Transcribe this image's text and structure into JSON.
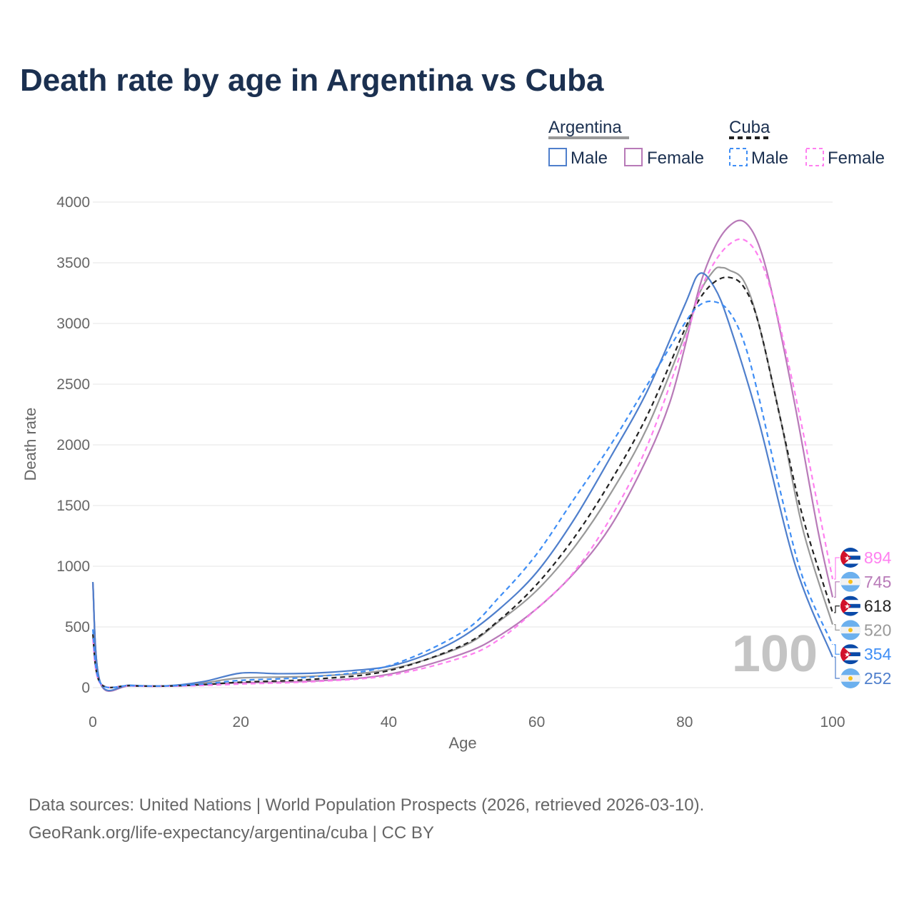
{
  "title": "Death rate by age in Argentina vs Cuba",
  "footer": {
    "line1": "Data sources: United Nations | World Population Prospects (2026, retrieved 2026-03-10).",
    "line2": "GeoRank.org/life-expectancy/argentina/cuba | CC BY"
  },
  "legend": {
    "groups": [
      {
        "label": "Argentina",
        "items": [
          "Male",
          "Female"
        ]
      },
      {
        "label": "Cuba",
        "items": [
          "Male",
          "Female"
        ]
      }
    ]
  },
  "chart_data": {
    "type": "line",
    "title": "Death rate by age in Argentina vs Cuba",
    "xlabel": "Age",
    "ylabel": "Death rate",
    "xlim": [
      0,
      100
    ],
    "ylim": [
      0,
      4000
    ],
    "xticks": [
      "0",
      "20",
      "40",
      "60",
      "80",
      "100"
    ],
    "yticks": [
      "0",
      "500",
      "1000",
      "1500",
      "2000",
      "2500",
      "3000",
      "3500",
      "4000"
    ],
    "age_marker": "100",
    "grid": true,
    "legend_position": "top-right",
    "series": [
      {
        "name": "Cuba Female",
        "country": "Cuba",
        "color": "#ff80f0",
        "dashed": true,
        "end_label": "894",
        "x": [
          0,
          1,
          5,
          10,
          15,
          20,
          30,
          40,
          50,
          55,
          60,
          65,
          70,
          75,
          80,
          82,
          84,
          86,
          88,
          90,
          92,
          95,
          98,
          100
        ],
        "y": [
          400,
          35,
          15,
          12,
          18,
          30,
          50,
          100,
          250,
          400,
          650,
          950,
          1400,
          2000,
          2850,
          3250,
          3500,
          3650,
          3690,
          3550,
          3200,
          2400,
          1500,
          894
        ]
      },
      {
        "name": "Argentina Female",
        "country": "Argentina",
        "color": "#b87ab8",
        "dashed": false,
        "end_label": "745",
        "x": [
          0,
          1,
          5,
          10,
          15,
          20,
          30,
          40,
          50,
          55,
          60,
          65,
          70,
          75,
          78,
          80,
          82,
          84,
          86,
          88,
          90,
          92,
          95,
          98,
          100
        ],
        "y": [
          860,
          40,
          15,
          12,
          25,
          40,
          55,
          110,
          280,
          430,
          650,
          940,
          1330,
          1900,
          2350,
          2800,
          3300,
          3620,
          3800,
          3840,
          3650,
          3200,
          2300,
          1300,
          745
        ]
      },
      {
        "name": "Cuba",
        "country": "Cuba",
        "color": "#222222",
        "dashed": true,
        "end_label": "618",
        "x": [
          0,
          1,
          5,
          10,
          15,
          20,
          30,
          40,
          50,
          55,
          60,
          65,
          70,
          75,
          80,
          82,
          84,
          86,
          88,
          90,
          93,
          96,
          100
        ],
        "y": [
          440,
          38,
          16,
          13,
          25,
          45,
          70,
          140,
          350,
          560,
          850,
          1230,
          1700,
          2250,
          2950,
          3200,
          3340,
          3380,
          3300,
          3000,
          2200,
          1400,
          618
        ]
      },
      {
        "name": "Argentina",
        "country": "Argentina",
        "color": "#999999",
        "dashed": false,
        "end_label": "520",
        "x": [
          0,
          1,
          5,
          10,
          15,
          20,
          30,
          40,
          50,
          55,
          60,
          65,
          70,
          75,
          80,
          82,
          84,
          85,
          86,
          88,
          90,
          93,
          96,
          100
        ],
        "y": [
          870,
          42,
          17,
          14,
          38,
          80,
          95,
          150,
          340,
          550,
          800,
          1150,
          1600,
          2150,
          2900,
          3250,
          3440,
          3460,
          3440,
          3350,
          3000,
          2200,
          1300,
          520
        ]
      },
      {
        "name": "Cuba Male",
        "country": "Cuba",
        "color": "#3f8ef5",
        "dashed": true,
        "end_label": "354",
        "x": [
          0,
          1,
          5,
          10,
          15,
          20,
          30,
          40,
          50,
          55,
          60,
          65,
          70,
          75,
          80,
          82,
          84,
          86,
          88,
          90,
          93,
          96,
          100
        ],
        "y": [
          480,
          40,
          17,
          14,
          30,
          60,
          90,
          180,
          460,
          750,
          1100,
          1550,
          2000,
          2500,
          3000,
          3150,
          3180,
          3100,
          2850,
          2400,
          1600,
          900,
          354
        ]
      },
      {
        "name": "Argentina Male",
        "country": "Argentina",
        "color": "#4f7fcc",
        "dashed": false,
        "end_label": "252",
        "x": [
          0,
          1,
          5,
          10,
          15,
          20,
          25,
          30,
          35,
          40,
          45,
          50,
          55,
          60,
          65,
          70,
          75,
          80,
          82,
          84,
          86,
          90,
          95,
          100
        ],
        "y": [
          870,
          45,
          20,
          15,
          50,
          120,
          115,
          120,
          140,
          175,
          270,
          420,
          650,
          950,
          1380,
          1900,
          2450,
          3150,
          3410,
          3300,
          3000,
          2200,
          1000,
          252
        ]
      }
    ]
  }
}
